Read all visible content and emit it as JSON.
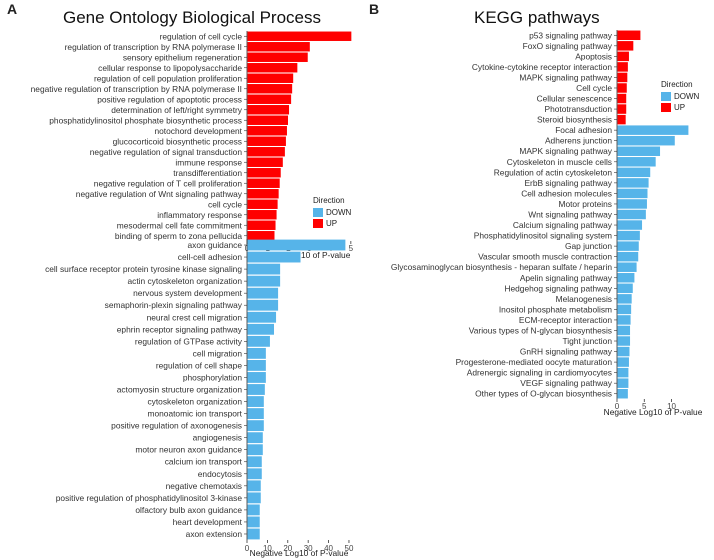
{
  "panels": {
    "a": {
      "letter": "A",
      "title": "Gene Ontology Biological Process"
    },
    "b": {
      "letter": "B",
      "title": "KEGG pathways"
    }
  },
  "legend": {
    "title": "Direction",
    "entries": [
      {
        "label": "DOWN",
        "color": "#56B4E9"
      },
      {
        "label": "UP",
        "color": "#FF0000"
      }
    ]
  },
  "colors": {
    "down": "#56B4E9",
    "up": "#FF0000"
  },
  "chart_data": [
    {
      "id": "go_up",
      "type": "bar",
      "orientation": "horizontal",
      "title": "Gene Ontology Biological Process",
      "xlabel": "Negative Log10 of P-value",
      "xlim": [
        0,
        5.2
      ],
      "xticks": [
        0,
        1,
        2,
        3,
        4,
        5
      ],
      "direction": "UP",
      "categories": [
        "regulation of cell cycle",
        "regulation of transcription by RNA polymerase II",
        "sensory epithelium regeneration",
        "cellular response to lipopolysaccharide",
        "regulation of cell population proliferation",
        "negative regulation of transcription by RNA polymerase II",
        "positive regulation of apoptotic process",
        "determination of left/right symmetry",
        "phosphatidylinositol phosphate biosynthetic process",
        "notochord development",
        "glucocorticoid biosynthetic process",
        "negative regulation of signal transduction",
        "immune response",
        "transdifferentiation",
        "negative regulation of T cell proliferation",
        "negative regulation of Wnt signaling pathway",
        "cell cycle",
        "inflammatory response",
        "mesodermal cell fate commitment",
        "binding of sperm to zona pellucida"
      ],
      "values": [
        5.0,
        3.0,
        2.9,
        2.4,
        2.2,
        2.15,
        2.1,
        2.0,
        1.95,
        1.9,
        1.85,
        1.8,
        1.7,
        1.6,
        1.55,
        1.5,
        1.45,
        1.4,
        1.35,
        1.3
      ]
    },
    {
      "id": "go_down",
      "type": "bar",
      "orientation": "horizontal",
      "xlabel": "Negative Log10 of P-value",
      "xlim": [
        0,
        51
      ],
      "xticks": [
        0,
        10,
        20,
        30,
        40,
        50
      ],
      "direction": "DOWN",
      "categories": [
        "axon guidance",
        "cell-cell adhesion",
        "cell surface receptor protein tyrosine kinase signaling",
        "actin cytoskeleton organization",
        "nervous system development",
        "semaphorin-plexin signaling pathway",
        "neural crest cell migration",
        "ephrin receptor signaling pathway",
        "regulation of GTPase activity",
        "cell migration",
        "regulation of cell shape",
        "phosphorylation",
        "actomyosin structure organization",
        "cytoskeleton organization",
        "monoatomic ion transport",
        "positive regulation of axonogenesis",
        "angiogenesis",
        "motor neuron axon guidance",
        "calcium ion transport",
        "endocytosis",
        "negative chemotaxis",
        "positive regulation of phosphatidylinositol 3-kinase",
        "olfactory bulb axon guidance",
        "heart development",
        "axon extension"
      ],
      "values": [
        48,
        26,
        16,
        16,
        15,
        15,
        14,
        13,
        11,
        9,
        9,
        9,
        8.5,
        8,
        8,
        8,
        7.5,
        7.5,
        7,
        7,
        6.5,
        6.5,
        6,
        6,
        6
      ]
    },
    {
      "id": "kegg",
      "type": "bar",
      "orientation": "horizontal",
      "title": "KEGG pathways",
      "xlabel": "Negative Log10 of P-value",
      "xlim": [
        0,
        13.2
      ],
      "xticks": [
        0,
        5,
        10
      ],
      "categories": [
        "p53 signaling pathway",
        "FoxO signaling pathway",
        "Apoptosis",
        "Cytokine-cytokine receptor interaction",
        "MAPK signaling pathway",
        "Cell cycle",
        "Cellular senescence",
        "Phototransduction",
        "Steroid biosynthesis",
        "Focal adhesion",
        "Adherens junction",
        "MAPK signaling pathway",
        "Cytoskeleton in muscle cells",
        "Regulation of actin cytoskeleton",
        "ErbB signaling pathway",
        "Cell adhesion molecules",
        "Motor proteins",
        "Wnt signaling pathway",
        "Calcium signaling pathway",
        "Phosphatidylinositol signaling system",
        "Gap junction",
        "Vascular smooth muscle contraction",
        "Glycosaminoglycan biosynthesis - heparan sulfate / heparin",
        "Apelin signaling pathway",
        "Hedgehog signaling pathway",
        "Melanogenesis",
        "Inositol phosphate metabolism",
        "ECM-receptor interaction",
        "Various types of N-glycan biosynthesis",
        "Tight junction",
        "GnRH signaling pathway",
        "Progesterone-mediated oocyte maturation",
        "Adrenergic signaling in cardiomyocytes",
        "VEGF signaling pathway",
        "Other types of O-glycan biosynthesis"
      ],
      "values": [
        4.2,
        2.9,
        2.1,
        1.9,
        1.8,
        1.7,
        1.6,
        1.6,
        1.5,
        13.0,
        10.5,
        7.8,
        7.0,
        6.0,
        5.7,
        5.5,
        5.4,
        5.2,
        4.5,
        4.1,
        3.9,
        3.8,
        3.5,
        3.1,
        2.8,
        2.6,
        2.5,
        2.4,
        2.3,
        2.3,
        2.2,
        2.1,
        2.0,
        2.0,
        1.9
      ],
      "directions": [
        "UP",
        "UP",
        "UP",
        "UP",
        "UP",
        "UP",
        "UP",
        "UP",
        "UP",
        "DOWN",
        "DOWN",
        "DOWN",
        "DOWN",
        "DOWN",
        "DOWN",
        "DOWN",
        "DOWN",
        "DOWN",
        "DOWN",
        "DOWN",
        "DOWN",
        "DOWN",
        "DOWN",
        "DOWN",
        "DOWN",
        "DOWN",
        "DOWN",
        "DOWN",
        "DOWN",
        "DOWN",
        "DOWN",
        "DOWN",
        "DOWN",
        "DOWN",
        "DOWN"
      ]
    }
  ]
}
